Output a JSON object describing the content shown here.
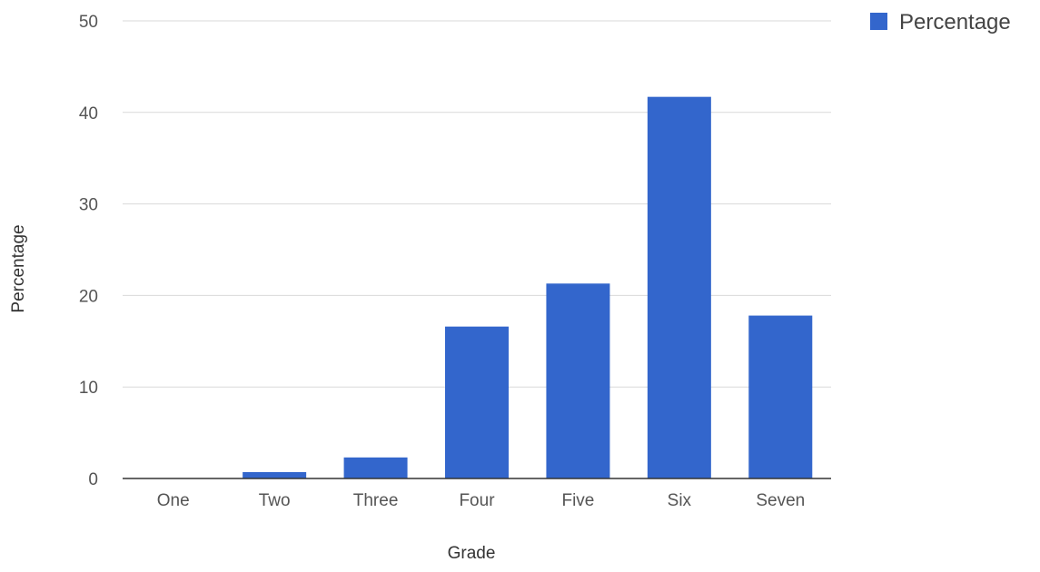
{
  "chart_data": {
    "type": "bar",
    "categories": [
      "One",
      "Two",
      "Three",
      "Four",
      "Five",
      "Six",
      "Seven"
    ],
    "series": [
      {
        "name": "Percentage",
        "values": [
          0,
          0.7,
          2.3,
          16.6,
          21.3,
          41.7,
          17.8
        ]
      }
    ],
    "title": "",
    "xlabel": "Grade",
    "ylabel": "Percentage",
    "ylim": [
      0,
      50
    ],
    "yticks": [
      0,
      10,
      20,
      30,
      40,
      50
    ],
    "grid": true,
    "legend_position": "top-right",
    "colors": {
      "bar": "#3366cc",
      "grid": "#d9d9d9",
      "baseline": "#333333"
    }
  }
}
